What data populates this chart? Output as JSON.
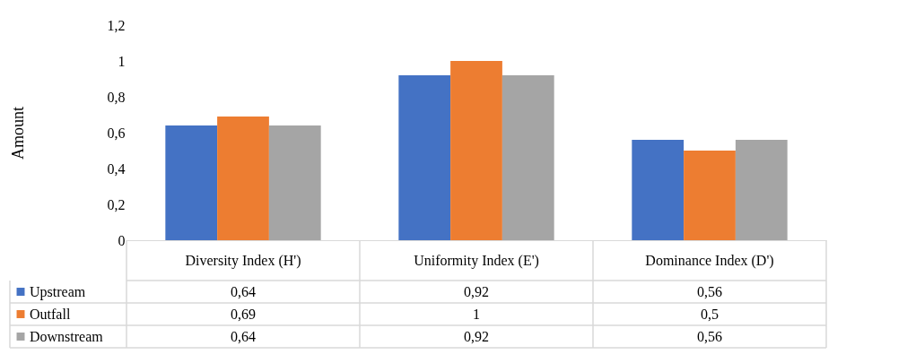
{
  "chart_data": {
    "type": "bar",
    "ylabel": "Amount",
    "categories": [
      "Diversity Index (H')",
      "Uniformity Index (E')",
      "Dominance Index (D')"
    ],
    "series": [
      {
        "name": "Upstream",
        "color": "#4472c4",
        "values": [
          0.64,
          0.92,
          0.56
        ],
        "value_labels": [
          "0,64",
          "0,92",
          "0,56"
        ]
      },
      {
        "name": "Outfall",
        "color": "#ed7d31",
        "values": [
          0.69,
          1,
          0.5
        ],
        "value_labels": [
          "0,69",
          "1",
          "0,5"
        ]
      },
      {
        "name": "Downstream",
        "color": "#a5a5a5",
        "values": [
          0.64,
          0.92,
          0.56
        ],
        "value_labels": [
          "0,64",
          "0,92",
          "0,56"
        ]
      }
    ],
    "ylim": [
      0,
      1.2
    ],
    "yticks": [
      0,
      {
        "value": 0.2,
        "label": "0,2"
      },
      {
        "value": 0.4,
        "label": "0,4"
      },
      {
        "value": 0.6,
        "label": "0,6"
      },
      {
        "value": 0.8,
        "label": "0,8"
      },
      1,
      {
        "value": 1.2,
        "label": "1,2"
      }
    ],
    "grid": false,
    "legend": "bottom left"
  }
}
